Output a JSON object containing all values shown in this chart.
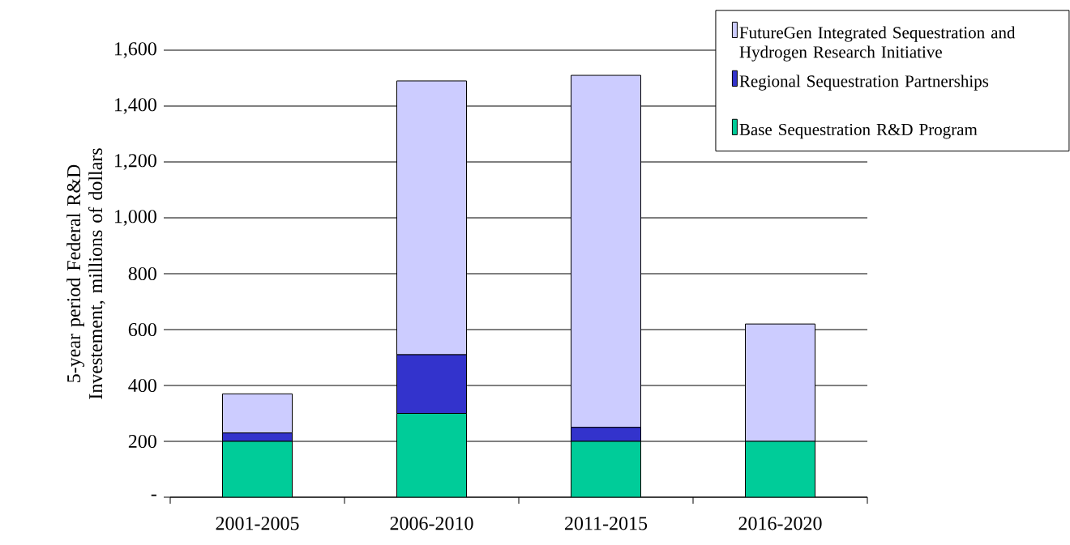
{
  "chart_data": {
    "type": "bar",
    "stacked": true,
    "ylabel": "5-year period Federal R&D Investement, millions of dollars",
    "categories": [
      "2001-2005",
      "2006-2010",
      "2011-2015",
      "2016-2020"
    ],
    "series": [
      {
        "name": "Base Sequestration R&D Program",
        "color": "#00cc99",
        "values": [
          200,
          300,
          200,
          200
        ]
      },
      {
        "name": "Regional Sequestration Partnerships",
        "color": "#3333cc",
        "values": [
          30,
          210,
          50,
          0
        ]
      },
      {
        "name": "FutureGen Integrated Sequestration and Hydrogen Research Initiative",
        "color": "#ccccff",
        "values": [
          140,
          980,
          1260,
          420
        ]
      }
    ],
    "ylim": [
      0,
      1600
    ],
    "yticks": [
      {
        "value": 0,
        "label": "-"
      },
      {
        "value": 200,
        "label": "200"
      },
      {
        "value": 400,
        "label": "400"
      },
      {
        "value": 600,
        "label": "600"
      },
      {
        "value": 800,
        "label": "800"
      },
      {
        "value": 1000,
        "label": "1,000"
      },
      {
        "value": 1200,
        "label": "1,200"
      },
      {
        "value": 1400,
        "label": "1,400"
      },
      {
        "value": 1600,
        "label": "1,600"
      }
    ],
    "grid": "y",
    "legend": "top right"
  }
}
